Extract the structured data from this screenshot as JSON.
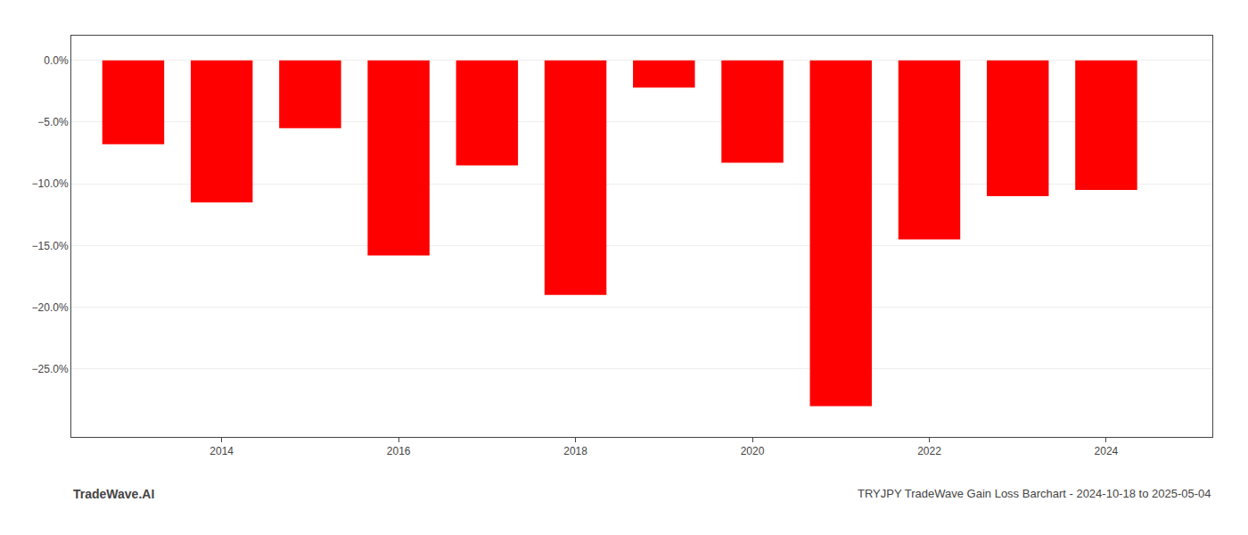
{
  "chart_data": {
    "type": "bar",
    "x": [
      2013,
      2014,
      2015,
      2016,
      2017,
      2018,
      2019,
      2020,
      2021,
      2022,
      2023,
      2024
    ],
    "values": [
      -6.8,
      -11.5,
      -5.5,
      -15.8,
      -8.5,
      -19.0,
      -2.2,
      -8.3,
      -28.0,
      -14.5,
      -11.0,
      -10.5
    ],
    "color": "#ff0000",
    "xlim": [
      2012.3,
      2025.2
    ],
    "xticks": [
      2014,
      2016,
      2018,
      2020,
      2022,
      2024
    ],
    "ylim": [
      -30.5,
      2.0
    ],
    "yticks": [
      {
        "value": 0.0,
        "label": "0.0%"
      },
      {
        "value": -5.0,
        "label": "−5.0%"
      },
      {
        "value": -10.0,
        "label": "−10.0%"
      },
      {
        "value": -15.0,
        "label": "−15.0%"
      },
      {
        "value": -20.0,
        "label": "−20.0%"
      },
      {
        "value": -25.0,
        "label": "−25.0%"
      }
    ],
    "grid": true,
    "annotations": [
      "TradeWave.AI",
      "TRYJPY TradeWave Gain Loss Barchart - 2024-10-18 to 2025-05-04"
    ]
  }
}
